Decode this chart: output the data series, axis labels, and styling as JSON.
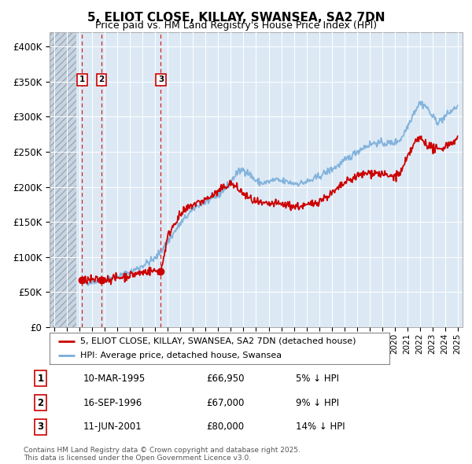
{
  "title": "5, ELIOT CLOSE, KILLAY, SWANSEA, SA2 7DN",
  "subtitle": "Price paid vs. HM Land Registry's House Price Index (HPI)",
  "ylim": [
    0,
    420000
  ],
  "yticks": [
    0,
    50000,
    100000,
    150000,
    200000,
    250000,
    300000,
    350000,
    400000
  ],
  "ytick_labels": [
    "£0",
    "£50K",
    "£100K",
    "£150K",
    "£200K",
    "£250K",
    "£300K",
    "£350K",
    "£400K"
  ],
  "xlim_start": 1992.6,
  "xlim_end": 2025.4,
  "hatch_end": 1994.7,
  "bg_color": "#dce9f5",
  "grid_color": "#ffffff",
  "transactions": [
    {
      "date": "10-MAR-1995",
      "year": 1995.19,
      "price": 66950,
      "label": "1",
      "pct": "5%",
      "dir": "↓"
    },
    {
      "date": "16-SEP-1996",
      "year": 1996.71,
      "price": 67000,
      "label": "2",
      "pct": "9%",
      "dir": "↓"
    },
    {
      "date": "11-JUN-2001",
      "year": 2001.44,
      "price": 80000,
      "label": "3",
      "pct": "14%",
      "dir": "↓"
    }
  ],
  "red_line_color": "#cc0000",
  "blue_line_color": "#7aadda",
  "footnote": "Contains HM Land Registry data © Crown copyright and database right 2025.\nThis data is licensed under the Open Government Licence v3.0.",
  "legend_label_red": "5, ELIOT CLOSE, KILLAY, SWANSEA, SA2 7DN (detached house)",
  "legend_label_blue": "HPI: Average price, detached house, Swansea",
  "hpi_years": [
    1995.0,
    1995.5,
    1996.0,
    1996.5,
    1997.0,
    1997.5,
    1998.0,
    1998.5,
    1999.0,
    1999.5,
    2000.0,
    2000.5,
    2001.0,
    2001.5,
    2002.0,
    2002.5,
    2003.0,
    2003.5,
    2004.0,
    2004.5,
    2005.0,
    2005.5,
    2006.0,
    2006.5,
    2007.0,
    2007.5,
    2008.0,
    2008.5,
    2009.0,
    2009.5,
    2010.0,
    2010.5,
    2011.0,
    2011.5,
    2012.0,
    2012.5,
    2013.0,
    2013.5,
    2014.0,
    2014.5,
    2015.0,
    2015.5,
    2016.0,
    2016.5,
    2017.0,
    2017.5,
    2018.0,
    2018.5,
    2019.0,
    2019.5,
    2020.0,
    2020.5,
    2021.0,
    2021.5,
    2022.0,
    2022.5,
    2023.0,
    2023.5,
    2024.0,
    2024.5,
    2025.0
  ],
  "hpi_vals": [
    63000,
    64000,
    65000,
    66000,
    68000,
    70000,
    72000,
    75000,
    78000,
    83000,
    88000,
    93000,
    98000,
    110000,
    122000,
    135000,
    148000,
    158000,
    168000,
    175000,
    178000,
    182000,
    188000,
    197000,
    208000,
    220000,
    225000,
    218000,
    208000,
    205000,
    207000,
    210000,
    208000,
    207000,
    205000,
    205000,
    207000,
    210000,
    215000,
    220000,
    225000,
    230000,
    237000,
    243000,
    250000,
    256000,
    260000,
    263000,
    262000,
    262000,
    263000,
    268000,
    285000,
    305000,
    320000,
    315000,
    300000,
    292000,
    300000,
    308000,
    315000
  ],
  "prop_years": [
    1995.19,
    1995.5,
    1996.0,
    1996.71,
    1997.0,
    1997.5,
    1998.0,
    1998.5,
    1999.0,
    1999.5,
    2000.0,
    2000.5,
    2001.0,
    2001.44,
    2002.0,
    2002.5,
    2003.0,
    2003.5,
    2004.0,
    2004.5,
    2005.0,
    2005.5,
    2006.0,
    2006.5,
    2007.0,
    2007.5,
    2008.0,
    2008.5,
    2009.0,
    2009.5,
    2010.0,
    2010.5,
    2011.0,
    2011.5,
    2012.0,
    2012.5,
    2013.0,
    2013.5,
    2014.0,
    2014.5,
    2015.0,
    2015.5,
    2016.0,
    2016.5,
    2017.0,
    2017.5,
    2018.0,
    2018.5,
    2019.0,
    2019.5,
    2020.0,
    2020.5,
    2021.0,
    2021.5,
    2022.0,
    2022.5,
    2023.0,
    2023.5,
    2024.0,
    2024.5,
    2025.0
  ],
  "prop_vals": [
    66950,
    67000,
    67200,
    67000,
    68000,
    69000,
    70000,
    72000,
    74000,
    76000,
    78000,
    80000,
    80000,
    80000,
    130000,
    148000,
    160000,
    168000,
    175000,
    178000,
    182000,
    187000,
    193000,
    200000,
    205000,
    198000,
    190000,
    183000,
    178000,
    175000,
    175000,
    176000,
    175000,
    174000,
    172000,
    172000,
    173000,
    176000,
    180000,
    185000,
    190000,
    197000,
    205000,
    210000,
    215000,
    218000,
    220000,
    220000,
    218000,
    215000,
    215000,
    220000,
    240000,
    260000,
    270000,
    262000,
    255000,
    252000,
    258000,
    263000,
    268000
  ]
}
